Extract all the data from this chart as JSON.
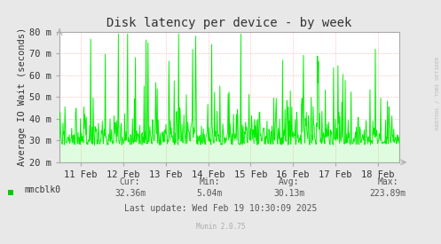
{
  "title": "Disk latency per device - by week",
  "ylabel": "Average IO Wait (seconds)",
  "xlabel_dates": [
    "11 Feb",
    "12 Feb",
    "13 Feb",
    "14 Feb",
    "15 Feb",
    "16 Feb",
    "17 Feb",
    "18 Feb"
  ],
  "ylim": [
    0.02,
    0.08
  ],
  "yticks": [
    0.02,
    0.03,
    0.04,
    0.05,
    0.06,
    0.07,
    0.08
  ],
  "ytick_labels": [
    "20 m",
    "30 m",
    "40 m",
    "50 m",
    "60 m",
    "70 m",
    "80 m"
  ],
  "line_color": "#00ee00",
  "fill_color": "#00ee00",
  "bg_color": "#e8e8e8",
  "plot_bg_color": "#ffffff",
  "grid_color": "#ff9999",
  "legend_label": "mmcblk0",
  "legend_color": "#00cc00",
  "cur": "32.36m",
  "min_val": "5.04m",
  "avg": "30.13m",
  "max_val": "223.89m",
  "last_update": "Last update: Wed Feb 19 10:30:09 2025",
  "munin_version": "Munin 2.0.75",
  "rrdtool_text": "RRDTOOL / TOBI OETIKER",
  "title_fontsize": 10,
  "axis_fontsize": 7.5,
  "stats_fontsize": 7,
  "seed": 42,
  "n_points": 700,
  "base_value": 0.028,
  "spike_probability": 0.04,
  "spike_max": 0.075,
  "noise_scale": 0.005
}
